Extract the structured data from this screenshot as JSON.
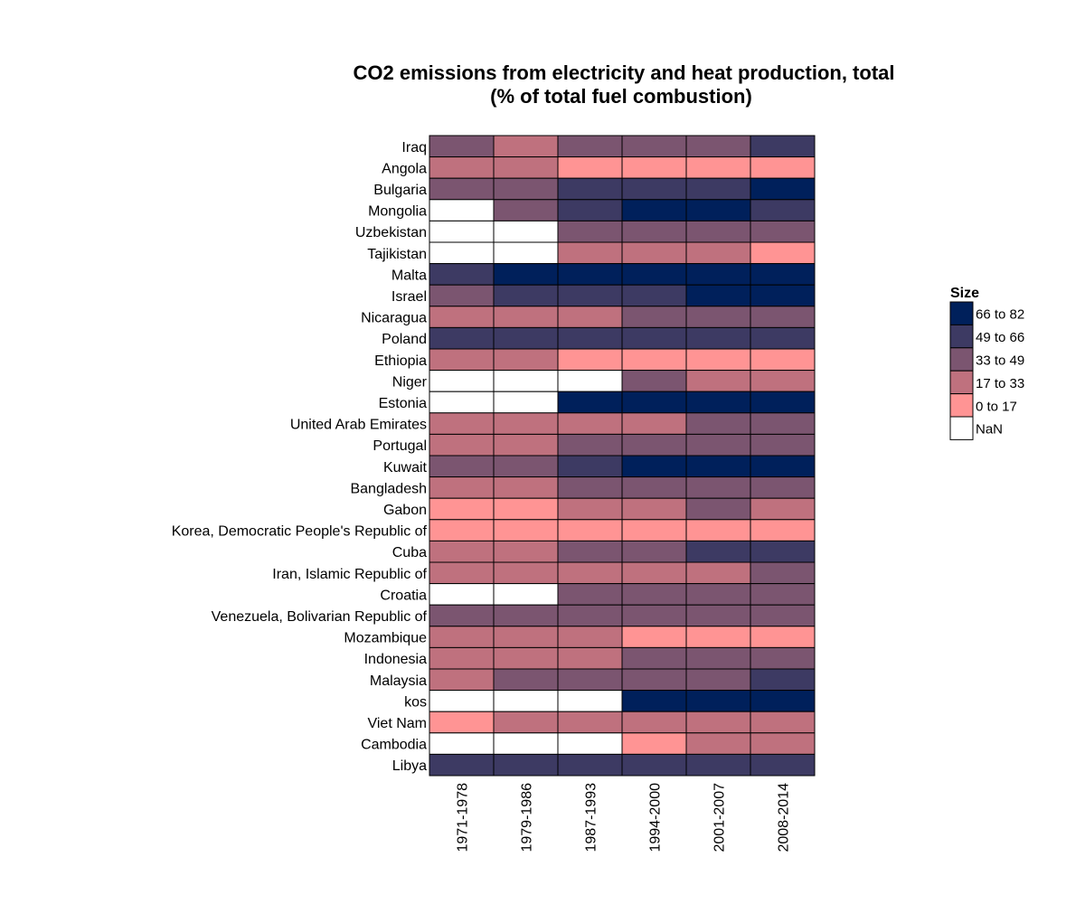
{
  "chart_data": {
    "type": "heatmap",
    "title": [
      "CO2 emissions from electricity and heat production, total",
      "(% of total fuel combustion)"
    ],
    "xlabel": "",
    "ylabel": "",
    "columns": [
      "1971-1978",
      "1979-1986",
      "1987-1993",
      "1994-2000",
      "2001-2007",
      "2008-2014"
    ],
    "rows": [
      "Iraq",
      "Angola",
      "Bulgaria",
      "Mongolia",
      "Uzbekistan",
      "Tajikistan",
      "Malta",
      "Israel",
      "Nicaragua",
      "Poland",
      "Ethiopia",
      "Niger",
      "Estonia",
      "United Arab Emirates",
      "Portugal",
      "Kuwait",
      "Bangladesh",
      "Gabon",
      "Korea, Democratic People's Republic of",
      "Cuba",
      "Iran, Islamic Republic of",
      "Croatia",
      "Venezuela, Bolivarian Republic of",
      "Mozambique",
      "Indonesia",
      "Malaysia",
      "kos",
      "Viet Nam",
      "Cambodia",
      "Libya"
    ],
    "values": [
      [
        "33 to 49",
        "17 to 33",
        "33 to 49",
        "33 to 49",
        "33 to 49",
        "49 to 66"
      ],
      [
        "17 to 33",
        "17 to 33",
        "0 to 17",
        "0 to 17",
        "0 to 17",
        "0 to 17"
      ],
      [
        "33 to 49",
        "33 to 49",
        "49 to 66",
        "49 to 66",
        "49 to 66",
        "66 to 82"
      ],
      [
        "NaN",
        "33 to 49",
        "49 to 66",
        "66 to 82",
        "66 to 82",
        "49 to 66"
      ],
      [
        "NaN",
        "NaN",
        "33 to 49",
        "33 to 49",
        "33 to 49",
        "33 to 49"
      ],
      [
        "NaN",
        "NaN",
        "17 to 33",
        "17 to 33",
        "17 to 33",
        "0 to 17"
      ],
      [
        "49 to 66",
        "66 to 82",
        "66 to 82",
        "66 to 82",
        "66 to 82",
        "66 to 82"
      ],
      [
        "33 to 49",
        "49 to 66",
        "49 to 66",
        "49 to 66",
        "66 to 82",
        "66 to 82"
      ],
      [
        "17 to 33",
        "17 to 33",
        "17 to 33",
        "33 to 49",
        "33 to 49",
        "33 to 49"
      ],
      [
        "49 to 66",
        "49 to 66",
        "49 to 66",
        "49 to 66",
        "49 to 66",
        "49 to 66"
      ],
      [
        "17 to 33",
        "17 to 33",
        "0 to 17",
        "0 to 17",
        "0 to 17",
        "0 to 17"
      ],
      [
        "NaN",
        "NaN",
        "NaN",
        "33 to 49",
        "17 to 33",
        "17 to 33"
      ],
      [
        "NaN",
        "NaN",
        "66 to 82",
        "66 to 82",
        "66 to 82",
        "66 to 82"
      ],
      [
        "17 to 33",
        "17 to 33",
        "17 to 33",
        "17 to 33",
        "33 to 49",
        "33 to 49"
      ],
      [
        "17 to 33",
        "17 to 33",
        "33 to 49",
        "33 to 49",
        "33 to 49",
        "33 to 49"
      ],
      [
        "33 to 49",
        "33 to 49",
        "49 to 66",
        "66 to 82",
        "66 to 82",
        "66 to 82"
      ],
      [
        "17 to 33",
        "17 to 33",
        "33 to 49",
        "33 to 49",
        "33 to 49",
        "33 to 49"
      ],
      [
        "0 to 17",
        "0 to 17",
        "17 to 33",
        "17 to 33",
        "33 to 49",
        "17 to 33"
      ],
      [
        "0 to 17",
        "0 to 17",
        "0 to 17",
        "0 to 17",
        "0 to 17",
        "0 to 17"
      ],
      [
        "17 to 33",
        "17 to 33",
        "33 to 49",
        "33 to 49",
        "49 to 66",
        "49 to 66"
      ],
      [
        "17 to 33",
        "17 to 33",
        "17 to 33",
        "17 to 33",
        "17 to 33",
        "33 to 49"
      ],
      [
        "NaN",
        "NaN",
        "33 to 49",
        "33 to 49",
        "33 to 49",
        "33 to 49"
      ],
      [
        "33 to 49",
        "33 to 49",
        "33 to 49",
        "33 to 49",
        "33 to 49",
        "33 to 49"
      ],
      [
        "17 to 33",
        "17 to 33",
        "17 to 33",
        "0 to 17",
        "0 to 17",
        "0 to 17"
      ],
      [
        "17 to 33",
        "17 to 33",
        "17 to 33",
        "33 to 49",
        "33 to 49",
        "33 to 49"
      ],
      [
        "17 to 33",
        "33 to 49",
        "33 to 49",
        "33 to 49",
        "33 to 49",
        "49 to 66"
      ],
      [
        "NaN",
        "NaN",
        "NaN",
        "66 to 82",
        "66 to 82",
        "66 to 82"
      ],
      [
        "0 to 17",
        "17 to 33",
        "17 to 33",
        "17 to 33",
        "17 to 33",
        "17 to 33"
      ],
      [
        "NaN",
        "NaN",
        "NaN",
        "0 to 17",
        "17 to 33",
        "17 to 33"
      ],
      [
        "49 to 66",
        "49 to 66",
        "49 to 66",
        "49 to 66",
        "49 to 66",
        "49 to 66"
      ]
    ],
    "legend": {
      "title": "Size",
      "placement": "right",
      "entries": [
        {
          "label": "66 to 82",
          "color": "#00205b"
        },
        {
          "label": "49 to 66",
          "color": "#3d3a63"
        },
        {
          "label": "33 to 49",
          "color": "#7b5570"
        },
        {
          "label": "17 to 33",
          "color": "#bf717e"
        },
        {
          "label": "0 to 17",
          "color": "#ff9494"
        },
        {
          "label": "NaN",
          "color": "#ffffff"
        }
      ]
    }
  }
}
